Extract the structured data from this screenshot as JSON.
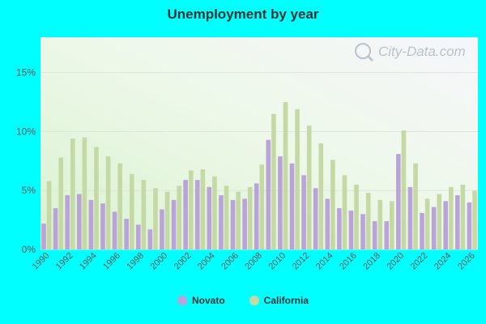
{
  "chart_data": {
    "type": "bar",
    "title": "Unemployment by year",
    "categories": [
      "1990",
      "1991",
      "1992",
      "1993",
      "1994",
      "1995",
      "1996",
      "1997",
      "1998",
      "1999",
      "2000",
      "2001",
      "2002",
      "2003",
      "2004",
      "2005",
      "2006",
      "2007",
      "2008",
      "2009",
      "2010",
      "2011",
      "2012",
      "2013",
      "2014",
      "2015",
      "2016",
      "2017",
      "2018",
      "2019",
      "2020",
      "2021",
      "2022",
      "2023",
      "2024",
      "2025",
      "2026"
    ],
    "x_tick_labels": [
      "1990",
      "1992",
      "1994",
      "1996",
      "1998",
      "2000",
      "2002",
      "2004",
      "2006",
      "2008",
      "2010",
      "2012",
      "2014",
      "2016",
      "2018",
      "2020",
      "2022",
      "2024",
      "2026"
    ],
    "y_ticks": [
      0,
      5,
      10,
      15
    ],
    "y_tick_labels": [
      "0%",
      "5%",
      "10%",
      "15%"
    ],
    "ylim": [
      0,
      18
    ],
    "grid": true,
    "legend_position": "bottom",
    "series": [
      {
        "name": "Novato",
        "color": "#b9a3d9",
        "values": [
          2.2,
          3.5,
          4.6,
          4.7,
          4.2,
          3.9,
          3.2,
          2.6,
          2.1,
          1.7,
          3.4,
          4.2,
          5.9,
          5.9,
          5.3,
          4.6,
          4.2,
          4.3,
          5.6,
          9.3,
          7.9,
          7.3,
          6.3,
          5.2,
          4.3,
          3.5,
          3.3,
          3.0,
          2.4,
          2.4,
          8.1,
          5.3,
          3.1,
          3.6,
          4.1,
          4.6,
          4.0
        ]
      },
      {
        "name": "California",
        "color": "#c5d9a5",
        "values": [
          5.8,
          7.8,
          9.4,
          9.5,
          8.7,
          7.9,
          7.3,
          6.4,
          5.9,
          5.2,
          4.9,
          5.4,
          6.7,
          6.8,
          6.2,
          5.4,
          4.9,
          5.3,
          7.2,
          11.5,
          12.5,
          11.9,
          10.5,
          9.0,
          7.6,
          6.3,
          5.5,
          4.8,
          4.2,
          4.1,
          10.1,
          7.3,
          4.3,
          4.7,
          5.3,
          5.5,
          5.0
        ]
      }
    ]
  },
  "watermark": "City-Data.com"
}
